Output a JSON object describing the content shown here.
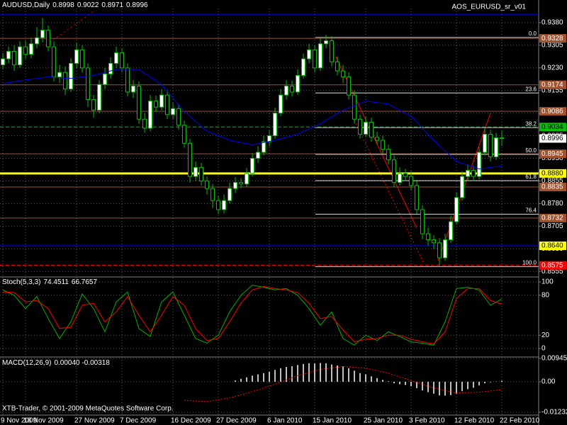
{
  "chart_data": [
    {
      "type": "candlestick",
      "title": "AUDUSD,Daily",
      "indicator": "AOS_EURUSD_sr_v01",
      "footer": "XTB-Trader, © 2001-2009 MetaQuotes Software Corp.",
      "categories": [
        "9 Nov 2009",
        null,
        null,
        null,
        "18 Nov 2009",
        null,
        null,
        null,
        null,
        null,
        null,
        null,
        null,
        "27 Nov 2009",
        null,
        null,
        null,
        null,
        null,
        null,
        null,
        "7 Dec 2009",
        null,
        null,
        null,
        null,
        null,
        null,
        null,
        null,
        "16 Dec 2009",
        null,
        null,
        null,
        null,
        null,
        null,
        null,
        "27 Dec 2009",
        null,
        null,
        null,
        null,
        null,
        null,
        null,
        null,
        "6 Jan 2010",
        null,
        null,
        null,
        null,
        null,
        null,
        null,
        "15 Jan 2010",
        null,
        null,
        null,
        null,
        null,
        null,
        null,
        null,
        "25 Jan 2010",
        null,
        null,
        null,
        null,
        null,
        null,
        null,
        "3 Feb 2010",
        null,
        null,
        null,
        null,
        null,
        null,
        null,
        "12 Feb 2010",
        null,
        null,
        null,
        null,
        null,
        null,
        null,
        "22 Feb 2010"
      ],
      "open": [
        0.924,
        0.926,
        0.9285,
        0.924,
        0.93,
        0.9275,
        0.931,
        0.933,
        0.9355,
        0.93,
        0.92,
        0.9215,
        0.916,
        0.9245,
        0.929,
        0.923,
        0.9125,
        0.909,
        0.9175,
        0.921,
        0.9245,
        0.928,
        0.923,
        0.915,
        0.917,
        0.906,
        0.903,
        0.912,
        0.91,
        0.914,
        0.9075,
        0.9095,
        0.904,
        0.898,
        0.887,
        0.89,
        0.8855,
        0.883,
        0.879,
        0.876,
        0.879,
        0.883,
        0.885,
        0.8845,
        0.888,
        0.893,
        0.895,
        0.8985,
        0.9005,
        0.908,
        0.914,
        0.917,
        0.915,
        0.9205,
        0.926,
        0.929,
        0.923,
        0.931,
        0.932,
        0.925,
        0.922,
        0.92,
        0.914,
        0.906,
        0.901,
        0.905,
        0.9,
        0.899,
        0.896,
        0.8925,
        0.885,
        0.888,
        0.887,
        0.884,
        0.876,
        0.868,
        0.866,
        0.865,
        0.86,
        0.866,
        0.872,
        0.88,
        0.887,
        0.889,
        0.887,
        0.895,
        0.901,
        0.8935,
        0.8998
      ],
      "high": [
        0.928,
        0.93,
        0.9305,
        0.9318,
        0.932,
        0.933,
        0.9365,
        0.9396,
        0.937,
        0.9318,
        0.924,
        0.9235,
        0.9262,
        0.9315,
        0.9305,
        0.9245,
        0.914,
        0.919,
        0.923,
        0.9265,
        0.93,
        0.9295,
        0.9245,
        0.919,
        0.9185,
        0.908,
        0.914,
        0.9138,
        0.916,
        0.9155,
        0.9115,
        0.911,
        0.9055,
        0.8995,
        0.892,
        0.8915,
        0.887,
        0.8845,
        0.8805,
        0.881,
        0.885,
        0.8868,
        0.8865,
        0.8898,
        0.8948,
        0.897,
        0.9005,
        0.9025,
        0.9098,
        0.916,
        0.919,
        0.9188,
        0.9225,
        0.9278,
        0.931,
        0.9305,
        0.9328,
        0.934,
        0.9335,
        0.9268,
        0.924,
        0.9215,
        0.9155,
        0.9075,
        0.907,
        0.9065,
        0.9018,
        0.9005,
        0.8975,
        0.894,
        0.89,
        0.8895,
        0.8888,
        0.8855,
        0.8775,
        0.87,
        0.8675,
        0.8665,
        0.868,
        0.874,
        0.8818,
        0.8888,
        0.891,
        0.8905,
        0.8968,
        0.903,
        0.9025,
        0.9015,
        0.9022
      ],
      "low": [
        0.9225,
        0.9245,
        0.922,
        0.923,
        0.926,
        0.9262,
        0.9295,
        0.9315,
        0.9285,
        0.9185,
        0.918,
        0.914,
        0.915,
        0.923,
        0.9215,
        0.91,
        0.9065,
        0.908,
        0.916,
        0.9195,
        0.923,
        0.9215,
        0.9135,
        0.913,
        0.9045,
        0.9015,
        0.902,
        0.9085,
        0.909,
        0.906,
        0.906,
        0.9025,
        0.8965,
        0.885,
        0.8855,
        0.884,
        0.881,
        0.8765,
        0.8745,
        0.8748,
        0.878,
        0.8815,
        0.883,
        0.8835,
        0.887,
        0.8915,
        0.894,
        0.897,
        0.8995,
        0.907,
        0.9125,
        0.9135,
        0.914,
        0.9195,
        0.9245,
        0.9215,
        0.922,
        0.9295,
        0.9235,
        0.9205,
        0.918,
        0.9125,
        0.9045,
        0.8995,
        0.9,
        0.8985,
        0.8975,
        0.8945,
        0.891,
        0.8835,
        0.884,
        0.8855,
        0.8825,
        0.8745,
        0.8662,
        0.864,
        0.863,
        0.8575,
        0.859,
        0.865,
        0.871,
        0.879,
        0.8855,
        0.8855,
        0.886,
        0.894,
        0.892,
        0.8925,
        0.8971
      ],
      "close": [
        0.926,
        0.9285,
        0.924,
        0.93,
        0.9275,
        0.931,
        0.933,
        0.9355,
        0.93,
        0.92,
        0.9215,
        0.916,
        0.9245,
        0.929,
        0.923,
        0.9125,
        0.909,
        0.9175,
        0.921,
        0.9245,
        0.928,
        0.923,
        0.915,
        0.917,
        0.906,
        0.903,
        0.912,
        0.91,
        0.914,
        0.9075,
        0.9095,
        0.904,
        0.898,
        0.887,
        0.89,
        0.8855,
        0.883,
        0.879,
        0.876,
        0.879,
        0.883,
        0.885,
        0.8845,
        0.888,
        0.893,
        0.895,
        0.8985,
        0.9005,
        0.908,
        0.914,
        0.917,
        0.915,
        0.9205,
        0.926,
        0.929,
        0.923,
        0.931,
        0.932,
        0.925,
        0.922,
        0.92,
        0.914,
        0.906,
        0.901,
        0.905,
        0.9,
        0.899,
        0.896,
        0.8925,
        0.885,
        0.888,
        0.887,
        0.884,
        0.876,
        0.868,
        0.866,
        0.865,
        0.86,
        0.866,
        0.872,
        0.88,
        0.887,
        0.889,
        0.887,
        0.895,
        0.901,
        0.8935,
        0.8998,
        0.8996
      ],
      "up_color": "#ffffff",
      "down_color": "#000000",
      "wick_color": "#00c000",
      "ylim": [
        0.8539,
        0.9427
      ],
      "yticks": [
        {
          "value": 0.938,
          "label": "0.9380"
        },
        0.9305,
        {
          "value": 0.923,
          "label": "0.9230"
        },
        0.9155,
        {
          "value": 0.908,
          "label": "0.9080"
        },
        0.9005,
        {
          "value": 0.893,
          "label": "0.8930"
        },
        0.8855,
        {
          "value": 0.878,
          "label": "0.8780"
        },
        0.8705,
        {
          "value": 0.863,
          "label": "0.8630"
        },
        0.8555
      ],
      "grid": true,
      "ma": {
        "color": "#0000ff",
        "x": [
          0,
          4,
          8,
          12,
          16,
          20,
          24,
          28,
          32,
          36,
          40,
          44,
          48,
          52,
          56,
          60,
          64,
          68,
          72,
          76,
          80,
          84,
          88
        ],
        "values": [
          0.9178,
          0.919,
          0.92,
          0.9195,
          0.9205,
          0.9225,
          0.9225,
          0.9175,
          0.9085,
          0.902,
          0.899,
          0.8975,
          0.899,
          0.901,
          0.9045,
          0.909,
          0.912,
          0.911,
          0.907,
          0.899,
          0.892,
          0.8895,
          0.8905
        ]
      },
      "levels": [
        {
          "value": 0.9408,
          "color": "#0000ff"
        },
        {
          "value": 0.9328,
          "label": "0.9328",
          "color": "#a0522d",
          "text_color": "#ffffff"
        },
        {
          "value": 0.9174,
          "label": "0.9174",
          "color": "#a0522d",
          "text_color": "#ffffff"
        },
        {
          "value": 0.9086,
          "label": "0.9086",
          "color": "#a0522d",
          "text_color": "#ffffff"
        },
        {
          "value": 0.9034,
          "label": "0.9034",
          "color": "#00c000",
          "text_color": "#000000",
          "dash": true
        },
        {
          "value": 0.8945,
          "label": "0.8945",
          "color": "#a0522d",
          "text_color": "#ffffff"
        },
        {
          "value": 0.888,
          "label": "0.8880",
          "color": "#ffff00",
          "text_color": "#000000",
          "width": 3
        },
        {
          "value": 0.8835,
          "label": "0.8835",
          "color": "#a0522d",
          "text_color": "#ffffff"
        },
        {
          "value": 0.8732,
          "label": "0.8732",
          "color": "#a0522d",
          "text_color": "#ffffff"
        },
        {
          "value": 0.864,
          "label": "0.8640",
          "color": "#0000ff",
          "label_color": "#ffff00",
          "text_color": "#000000"
        },
        {
          "value": 0.8575,
          "label": "0.8575",
          "color": "#ff0000",
          "text_color": "#ffffff",
          "dash": true
        }
      ],
      "fib_color": "#ffffff",
      "fib": [
        {
          "label": "0.0",
          "price": 0.9331
        },
        {
          "label": "23.6",
          "price": 0.9147
        },
        {
          "label": "38.2",
          "price": 0.9032
        },
        {
          "label": "50.0",
          "price": 0.8943
        },
        {
          "label": "61.8",
          "price": 0.8856
        },
        {
          "label": "76.4",
          "price": 0.8745
        },
        {
          "label": "100.0",
          "price": 0.8571
        }
      ]
    },
    {
      "type": "line",
      "title": "Stoch(5,3,3)",
      "x": [
        0,
        2,
        4,
        6,
        8,
        10,
        12,
        14,
        16,
        18,
        20,
        22,
        24,
        26,
        28,
        30,
        32,
        34,
        36,
        38,
        40,
        42,
        44,
        46,
        48,
        50,
        52,
        54,
        56,
        58,
        60,
        62,
        64,
        66,
        68,
        70,
        72,
        74,
        76,
        78,
        80,
        82,
        84,
        86,
        88
      ],
      "series": [
        {
          "color": "#00b000",
          "values": [
            88,
            80,
            60,
            78,
            45,
            15,
            40,
            82,
            60,
            25,
            70,
            85,
            30,
            18,
            70,
            85,
            50,
            15,
            8,
            20,
            55,
            80,
            95,
            92,
            88,
            90,
            80,
            60,
            35,
            55,
            15,
            5,
            20,
            12,
            25,
            18,
            10,
            8,
            5,
            40,
            90,
            92,
            88,
            65,
            74.4511
          ]
        },
        {
          "color": "#ff0000",
          "values": [
            85,
            84,
            70,
            72,
            60,
            30,
            32,
            65,
            68,
            40,
            55,
            78,
            50,
            25,
            50,
            78,
            65,
            30,
            12,
            15,
            40,
            68,
            88,
            93,
            90,
            88,
            84,
            68,
            45,
            48,
            28,
            10,
            14,
            15,
            20,
            20,
            14,
            10,
            7,
            25,
            75,
            90,
            90,
            72,
            66.7657
          ]
        }
      ],
      "ylim": [
        -11.7,
        105.3
      ],
      "yticks": [
        0,
        20,
        80,
        100
      ],
      "grid": true
    },
    {
      "type": "macd",
      "title": "MACD(12,26,9)",
      "readout": "0.00040 -0.00318",
      "histogram": {
        "color": "#ffffff",
        "x": [
          41,
          42,
          43,
          44,
          45,
          46,
          47,
          48,
          49,
          50,
          51,
          52,
          53,
          54,
          55,
          56,
          57,
          58,
          59,
          60,
          61,
          62,
          63,
          64,
          65,
          66,
          67,
          68,
          69,
          70,
          71,
          72,
          73,
          74,
          75,
          76,
          77,
          78,
          79,
          80,
          81,
          82,
          83,
          84,
          85,
          86,
          87,
          88
        ],
        "values": [
          0.0005,
          0.0012,
          0.0018,
          0.0025,
          0.003,
          0.0035,
          0.004,
          0.0048,
          0.0055,
          0.006,
          0.0063,
          0.0068,
          0.0072,
          0.0075,
          0.0074,
          0.0076,
          0.0075,
          0.007,
          0.0066,
          0.0062,
          0.0055,
          0.0045,
          0.0035,
          0.003,
          0.0022,
          0.0015,
          0.0008,
          0.0002,
          -0.0006,
          -0.001,
          -0.0013,
          -0.0018,
          -0.0026,
          -0.0035,
          -0.0042,
          -0.0048,
          -0.0055,
          -0.0056,
          -0.0054,
          -0.0048,
          -0.0038,
          -0.003,
          -0.0024,
          -0.0015,
          -0.0006,
          -0.0002,
          0.0001,
          0.0004
        ]
      },
      "signal": {
        "color": "#ff0000",
        "x": [
          32,
          36,
          40,
          44,
          48,
          52,
          56,
          60,
          64,
          68,
          72,
          76,
          80,
          84,
          88
        ],
        "values": [
          -0.0075,
          -0.008,
          -0.0065,
          -0.004,
          -0.001,
          0.0025,
          0.005,
          0.0062,
          0.0055,
          0.0035,
          0.0005,
          -0.0025,
          -0.0045,
          -0.0042,
          -0.00318
        ]
      },
      "ylim": [
        -0.01232,
        0.00945
      ],
      "yticks": [
        0.00945,
        {
          "value": 0,
          "label": "0.00"
        },
        -0.01232
      ],
      "grid": true
    }
  ]
}
